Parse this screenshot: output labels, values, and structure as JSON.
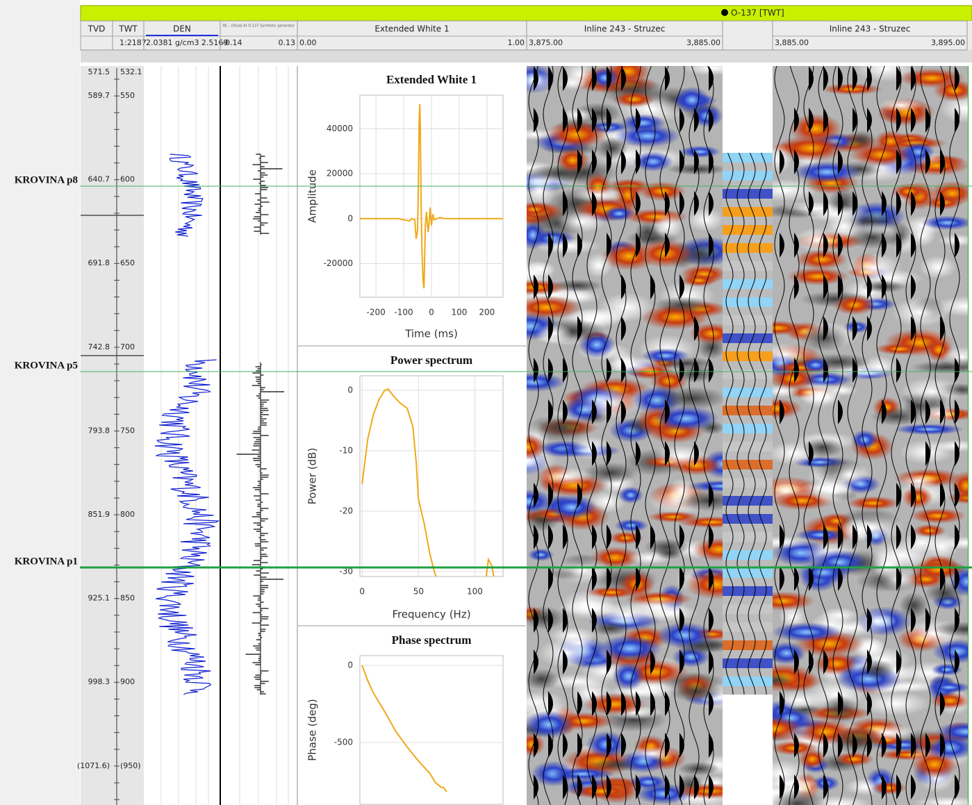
{
  "window": {
    "well": "O-137 [TWT]"
  },
  "tracks": [
    {
      "name": "TVD"
    },
    {
      "name": "TWT",
      "scale": "1:2187"
    },
    {
      "name": "DEN",
      "range": "2.0381 g/cm3 2.5169"
    },
    {
      "name": "RC - (Study 6) O-137 Synthetic generator",
      "min": "-0.14",
      "max": "0.13"
    },
    {
      "name": "Extended White 1",
      "min": "0.00",
      "max": "1.00"
    },
    {
      "name": "Inline 243 - Struzec",
      "min": "3,875.00",
      "max": "3,885.00"
    },
    {
      "name": "Inline 243 - Struzec",
      "min": "3,885.00",
      "max": "3,895.00"
    }
  ],
  "depth_labels": [
    {
      "tvd": "571.5",
      "twt": "532.1"
    },
    {
      "tvd": "589.7",
      "twt": "550"
    },
    {
      "tvd": "640.7",
      "twt": "600"
    },
    {
      "tvd": "691.8",
      "twt": "650"
    },
    {
      "tvd": "742.8",
      "twt": "700"
    },
    {
      "tvd": "793.8",
      "twt": "750"
    },
    {
      "tvd": "851.9",
      "twt": "800"
    },
    {
      "tvd": "925.1",
      "twt": "850"
    },
    {
      "tvd": "998.3",
      "twt": "900"
    },
    {
      "tvd": "(1071.6)",
      "twt": "(950)"
    }
  ],
  "markers": [
    "KROVINA p8",
    "KROVINA p5",
    "KROVINA p1"
  ],
  "chart_data": [
    {
      "type": "line",
      "title": "Extended White 1",
      "x_label": "Time (ms)",
      "y_label": "Amplitude",
      "color": "#f0a818",
      "grid": true,
      "x": [
        -258,
        -120,
        -80,
        -70,
        -60,
        -55,
        -50,
        -47,
        -44,
        -42,
        -40,
        -37,
        -34,
        -30,
        -27,
        -25,
        -22,
        -18,
        -12,
        -8,
        -5,
        0,
        5,
        10,
        20,
        30,
        50,
        80,
        258
      ],
      "values": [
        0,
        0,
        -1000,
        0,
        -500,
        -9000,
        -5000,
        15000,
        45000,
        51000,
        40000,
        5000,
        -15000,
        -28000,
        -31000,
        -20000,
        -3000,
        3000,
        -6000,
        -1000,
        5000,
        -3000,
        2000,
        -500,
        0,
        500,
        0,
        0,
        0
      ],
      "xlim": [
        -258,
        258
      ],
      "xticks": [
        -200,
        -100,
        0,
        100,
        200
      ],
      "ylim": [
        -35000,
        55000
      ],
      "yticks": [
        -20000,
        0,
        20000,
        40000
      ]
    },
    {
      "type": "line",
      "title": "Power spectrum",
      "x_label": "Frequency (Hz)",
      "y_label": "Power (dB)",
      "color": "#f0a818",
      "grid": true,
      "x": [
        0,
        5,
        10,
        15,
        20,
        23,
        28,
        33,
        40,
        45,
        48,
        50,
        55,
        60,
        64,
        66,
        null,
        110,
        112,
        115,
        117
      ],
      "values": [
        -15.5,
        -8,
        -4,
        -1.5,
        0,
        0.2,
        -1,
        -2,
        -3,
        -6,
        -12,
        -18,
        -22,
        -27,
        -30,
        -31,
        null,
        -31,
        -28,
        -29,
        -31
      ],
      "xlim": [
        -2,
        125
      ],
      "xticks": [
        0,
        50,
        100
      ],
      "ylim": [
        -30.8,
        2.4
      ],
      "yticks": [
        -30,
        -20,
        -10,
        0
      ]
    },
    {
      "type": "line",
      "title": "Phase spectrum",
      "y_label": "Phase (deg)",
      "color": "#f0a818",
      "grid": true,
      "x": [
        0,
        5,
        10,
        20,
        30,
        40,
        50,
        60,
        65,
        70,
        72,
        75
      ],
      "values": [
        0,
        -100,
        -180,
        -300,
        -430,
        -530,
        -620,
        -700,
        -760,
        -790,
        -790,
        -820
      ],
      "xlim": [
        -2,
        125
      ],
      "ylim": [
        -901,
        63
      ],
      "yticks": [
        -500,
        0
      ]
    }
  ]
}
